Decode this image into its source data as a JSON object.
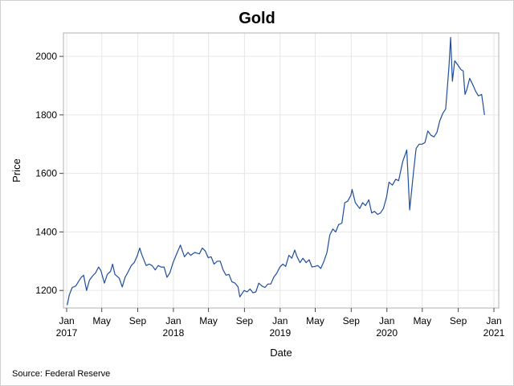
{
  "chart_data": {
    "type": "line",
    "title": "Gold",
    "xlabel": "Date",
    "ylabel": "Price",
    "footnote": "Source: Federal Reserve",
    "xlim": [
      "2017-01-01",
      "2021-01-01"
    ],
    "ylim": [
      1140,
      2080
    ],
    "grid": true,
    "line_color": "#1f4e9c",
    "yticks": [
      1200,
      1400,
      1600,
      1800,
      2000
    ],
    "xticks": [
      {
        "date": "2017-01-01",
        "month": "Jan",
        "year": "2017"
      },
      {
        "date": "2017-05-01",
        "month": "May",
        "year": ""
      },
      {
        "date": "2017-09-01",
        "month": "Sep",
        "year": ""
      },
      {
        "date": "2018-01-01",
        "month": "Jan",
        "year": "2018"
      },
      {
        "date": "2018-05-01",
        "month": "May",
        "year": ""
      },
      {
        "date": "2018-09-01",
        "month": "Sep",
        "year": ""
      },
      {
        "date": "2019-01-01",
        "month": "Jan",
        "year": "2019"
      },
      {
        "date": "2019-05-01",
        "month": "May",
        "year": ""
      },
      {
        "date": "2019-09-01",
        "month": "Sep",
        "year": ""
      },
      {
        "date": "2020-01-01",
        "month": "Jan",
        "year": "2020"
      },
      {
        "date": "2020-05-01",
        "month": "May",
        "year": ""
      },
      {
        "date": "2020-09-01",
        "month": "Sep",
        "year": ""
      },
      {
        "date": "2021-01-01",
        "month": "Jan",
        "year": "2021"
      }
    ],
    "series": [
      {
        "points": [
          [
            "2017-01-03",
            1150
          ],
          [
            "2017-01-10",
            1185
          ],
          [
            "2017-01-20",
            1210
          ],
          [
            "2017-02-01",
            1215
          ],
          [
            "2017-02-10",
            1230
          ],
          [
            "2017-02-20",
            1245
          ],
          [
            "2017-02-28",
            1252
          ],
          [
            "2017-03-10",
            1200
          ],
          [
            "2017-03-20",
            1235
          ],
          [
            "2017-03-31",
            1250
          ],
          [
            "2017-04-10",
            1260
          ],
          [
            "2017-04-20",
            1280
          ],
          [
            "2017-04-28",
            1268
          ],
          [
            "2017-05-10",
            1225
          ],
          [
            "2017-05-20",
            1255
          ],
          [
            "2017-05-31",
            1265
          ],
          [
            "2017-06-07",
            1290
          ],
          [
            "2017-06-15",
            1255
          ],
          [
            "2017-06-30",
            1242
          ],
          [
            "2017-07-10",
            1212
          ],
          [
            "2017-07-20",
            1245
          ],
          [
            "2017-07-31",
            1265
          ],
          [
            "2017-08-10",
            1285
          ],
          [
            "2017-08-20",
            1295
          ],
          [
            "2017-08-31",
            1320
          ],
          [
            "2017-09-08",
            1345
          ],
          [
            "2017-09-15",
            1322
          ],
          [
            "2017-09-30",
            1285
          ],
          [
            "2017-10-10",
            1290
          ],
          [
            "2017-10-20",
            1285
          ],
          [
            "2017-10-31",
            1270
          ],
          [
            "2017-11-10",
            1285
          ],
          [
            "2017-11-20",
            1280
          ],
          [
            "2017-11-30",
            1280
          ],
          [
            "2017-12-10",
            1245
          ],
          [
            "2017-12-20",
            1260
          ],
          [
            "2017-12-31",
            1295
          ],
          [
            "2018-01-10",
            1320
          ],
          [
            "2018-01-25",
            1355
          ],
          [
            "2018-02-08",
            1315
          ],
          [
            "2018-02-20",
            1330
          ],
          [
            "2018-03-01",
            1320
          ],
          [
            "2018-03-15",
            1330
          ],
          [
            "2018-03-31",
            1325
          ],
          [
            "2018-04-10",
            1345
          ],
          [
            "2018-04-20",
            1335
          ],
          [
            "2018-04-30",
            1312
          ],
          [
            "2018-05-10",
            1315
          ],
          [
            "2018-05-20",
            1290
          ],
          [
            "2018-05-31",
            1300
          ],
          [
            "2018-06-10",
            1300
          ],
          [
            "2018-06-20",
            1270
          ],
          [
            "2018-06-30",
            1252
          ],
          [
            "2018-07-10",
            1255
          ],
          [
            "2018-07-20",
            1230
          ],
          [
            "2018-07-31",
            1225
          ],
          [
            "2018-08-10",
            1212
          ],
          [
            "2018-08-16",
            1178
          ],
          [
            "2018-08-31",
            1200
          ],
          [
            "2018-09-10",
            1195
          ],
          [
            "2018-09-20",
            1205
          ],
          [
            "2018-09-30",
            1192
          ],
          [
            "2018-10-10",
            1195
          ],
          [
            "2018-10-20",
            1225
          ],
          [
            "2018-10-31",
            1215
          ],
          [
            "2018-11-10",
            1210
          ],
          [
            "2018-11-20",
            1222
          ],
          [
            "2018-11-30",
            1222
          ],
          [
            "2018-12-10",
            1245
          ],
          [
            "2018-12-20",
            1258
          ],
          [
            "2018-12-31",
            1280
          ],
          [
            "2019-01-10",
            1290
          ],
          [
            "2019-01-20",
            1282
          ],
          [
            "2019-01-31",
            1320
          ],
          [
            "2019-02-10",
            1310
          ],
          [
            "2019-02-20",
            1338
          ],
          [
            "2019-02-28",
            1315
          ],
          [
            "2019-03-10",
            1295
          ],
          [
            "2019-03-20",
            1310
          ],
          [
            "2019-03-31",
            1295
          ],
          [
            "2019-04-10",
            1305
          ],
          [
            "2019-04-20",
            1280
          ],
          [
            "2019-04-30",
            1282
          ],
          [
            "2019-05-10",
            1285
          ],
          [
            "2019-05-20",
            1275
          ],
          [
            "2019-05-31",
            1300
          ],
          [
            "2019-06-10",
            1330
          ],
          [
            "2019-06-20",
            1390
          ],
          [
            "2019-06-30",
            1410
          ],
          [
            "2019-07-10",
            1400
          ],
          [
            "2019-07-20",
            1425
          ],
          [
            "2019-07-31",
            1430
          ],
          [
            "2019-08-10",
            1500
          ],
          [
            "2019-08-20",
            1505
          ],
          [
            "2019-08-31",
            1525
          ],
          [
            "2019-09-04",
            1545
          ],
          [
            "2019-09-15",
            1500
          ],
          [
            "2019-09-30",
            1480
          ],
          [
            "2019-10-10",
            1500
          ],
          [
            "2019-10-20",
            1490
          ],
          [
            "2019-10-31",
            1510
          ],
          [
            "2019-11-10",
            1465
          ],
          [
            "2019-11-20",
            1470
          ],
          [
            "2019-11-30",
            1460
          ],
          [
            "2019-12-10",
            1465
          ],
          [
            "2019-12-20",
            1480
          ],
          [
            "2019-12-31",
            1520
          ],
          [
            "2020-01-08",
            1570
          ],
          [
            "2020-01-20",
            1560
          ],
          [
            "2020-01-31",
            1580
          ],
          [
            "2020-02-10",
            1575
          ],
          [
            "2020-02-24",
            1640
          ],
          [
            "2020-03-09",
            1680
          ],
          [
            "2020-03-19",
            1475
          ],
          [
            "2020-03-31",
            1595
          ],
          [
            "2020-04-10",
            1685
          ],
          [
            "2020-04-20",
            1700
          ],
          [
            "2020-04-30",
            1700
          ],
          [
            "2020-05-10",
            1705
          ],
          [
            "2020-05-20",
            1745
          ],
          [
            "2020-05-31",
            1730
          ],
          [
            "2020-06-10",
            1725
          ],
          [
            "2020-06-20",
            1740
          ],
          [
            "2020-06-30",
            1780
          ],
          [
            "2020-07-10",
            1805
          ],
          [
            "2020-07-20",
            1820
          ],
          [
            "2020-07-31",
            1960
          ],
          [
            "2020-08-06",
            2065
          ],
          [
            "2020-08-12",
            1915
          ],
          [
            "2020-08-20",
            1985
          ],
          [
            "2020-08-31",
            1970
          ],
          [
            "2020-09-10",
            1955
          ],
          [
            "2020-09-18",
            1950
          ],
          [
            "2020-09-24",
            1870
          ],
          [
            "2020-09-30",
            1885
          ],
          [
            "2020-10-10",
            1925
          ],
          [
            "2020-10-20",
            1905
          ],
          [
            "2020-10-31",
            1880
          ],
          [
            "2020-11-09",
            1865
          ],
          [
            "2020-11-20",
            1870
          ],
          [
            "2020-11-30",
            1800
          ]
        ]
      }
    ]
  }
}
